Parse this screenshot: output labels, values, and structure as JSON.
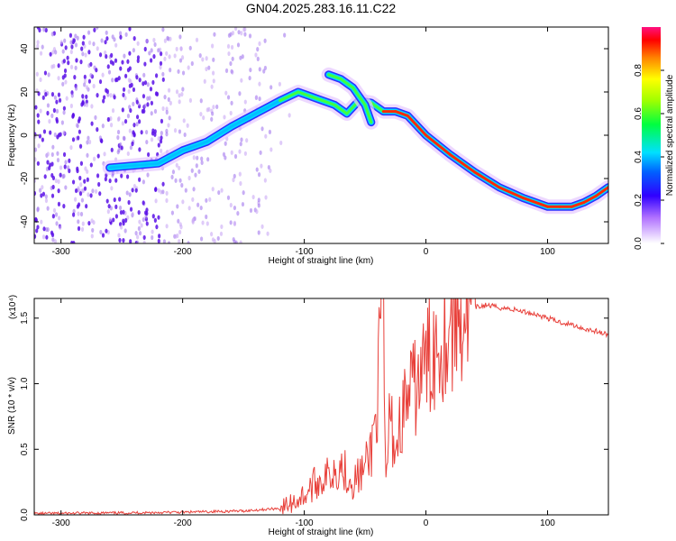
{
  "title": "GN04.2025.283.16.11.C22",
  "chart_data": [
    {
      "type": "heatmap",
      "title": "GN04.2025.283.16.11.C22",
      "xlabel": "Height of straight line (km)",
      "ylabel": "Frequency (Hz)",
      "xlim": [
        -322,
        150
      ],
      "ylim": [
        -50,
        50
      ],
      "xticks": [
        -300,
        -200,
        -100,
        0,
        100
      ],
      "yticks": [
        -40,
        -20,
        0,
        20,
        40
      ],
      "xtick_labels": [
        "-300",
        "-200",
        "-100",
        "0",
        "100"
      ],
      "ytick_labels": [
        "-40",
        "-20",
        "0",
        "20",
        "40"
      ],
      "colorbar": {
        "label": "Normalized spectral amplitude",
        "range": [
          0,
          1
        ],
        "ticks": [
          0.0,
          0.2,
          0.4,
          0.6,
          0.8
        ],
        "tick_labels": [
          "0.0",
          "0.2",
          "0.4",
          "0.6",
          "0.8"
        ]
      },
      "ridge": {
        "x": [
          -260,
          -220,
          -200,
          -180,
          -160,
          -140,
          -120,
          -105,
          -95,
          -85,
          -75,
          -65,
          -55,
          -45,
          -35,
          -25,
          -15,
          0,
          20,
          40,
          60,
          80,
          100,
          110,
          120,
          130,
          140,
          150
        ],
        "y": [
          -15,
          -13,
          -7,
          -3,
          4,
          10,
          16,
          20,
          18,
          16,
          14,
          10,
          16,
          15,
          11,
          11,
          9,
          0,
          -9,
          -17,
          -24,
          -29,
          -33,
          -33,
          -33,
          -31,
          -28,
          -24
        ]
      },
      "branch": {
        "x": [
          -80,
          -70,
          -60,
          -50,
          -45
        ],
        "y": [
          28,
          26,
          22,
          14,
          6
        ]
      },
      "grid": false
    },
    {
      "type": "line",
      "xlabel": "Height of straight line (km)",
      "ylabel": "SNR (10 * v/v)",
      "y_multiplier": "(x10⁴)",
      "xlim": [
        -322,
        150
      ],
      "ylim": [
        0,
        1.65
      ],
      "xticks": [
        -300,
        -200,
        -100,
        0,
        100
      ],
      "yticks": [
        0.0,
        0.5,
        1.0,
        1.5
      ],
      "xtick_labels": [
        "-300",
        "-200",
        "-100",
        "0",
        "100"
      ],
      "ytick_labels": [
        "0.0",
        "0.5",
        "1.0",
        "1.5"
      ],
      "series": [
        {
          "color": "#e8403a",
          "x": [
            -322,
            -250,
            -200,
            -150,
            -120,
            -110,
            -100,
            -90,
            -80,
            -75,
            -70,
            -60,
            -50,
            -45,
            -40,
            -36,
            -35,
            -34,
            -33,
            -30,
            -25,
            -20,
            -15,
            -10,
            -5,
            0,
            5,
            10,
            20,
            30,
            40,
            50,
            60,
            70,
            80,
            90,
            100,
            110,
            120,
            130,
            140,
            150
          ],
          "y": [
            0.01,
            0.015,
            0.02,
            0.03,
            0.05,
            0.09,
            0.15,
            0.25,
            0.3,
            0.35,
            0.38,
            0.25,
            0.35,
            0.5,
            0.85,
            1.62,
            1.5,
            0.7,
            0.2,
            0.75,
            0.5,
            0.75,
            0.9,
            0.95,
            1.05,
            1.15,
            1.25,
            1.33,
            1.45,
            1.55,
            1.58,
            1.6,
            1.58,
            1.57,
            1.55,
            1.53,
            1.5,
            1.47,
            1.45,
            1.42,
            1.4,
            1.37
          ]
        }
      ],
      "grid": false
    }
  ]
}
